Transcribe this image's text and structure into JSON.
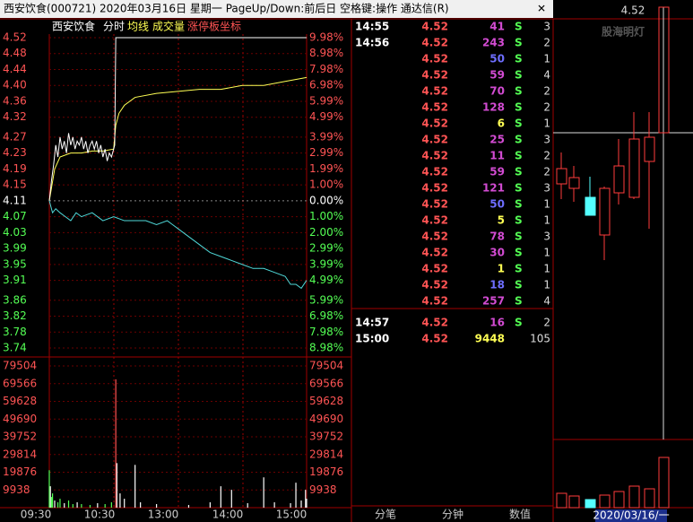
{
  "title_bar": {
    "text": "西安饮食(000721)  2020年03月16日 星期一  PageUp/Down:前后日  空格键:操作  通达信(R)"
  },
  "chart_header": {
    "name": "西安饮食",
    "mode": "分时",
    "avg": "均线",
    "volume": "成交量",
    "limit": "涨停板坐标"
  },
  "intraday": {
    "price_ticks": [
      {
        "value": 4.52,
        "label": "4.52"
      },
      {
        "value": 4.48,
        "label": "4.48"
      },
      {
        "value": 4.44,
        "label": "4.44"
      },
      {
        "value": 4.4,
        "label": "4.40"
      },
      {
        "value": 4.36,
        "label": "4.36"
      },
      {
        "value": 4.32,
        "label": "4.32"
      },
      {
        "value": 4.27,
        "label": "4.27"
      },
      {
        "value": 4.23,
        "label": "4.23"
      },
      {
        "value": 4.19,
        "label": "4.19"
      },
      {
        "value": 4.15,
        "label": "4.15"
      },
      {
        "value": 4.11,
        "label": "4.11"
      },
      {
        "value": 4.07,
        "label": "4.07"
      },
      {
        "value": 4.03,
        "label": "4.03"
      },
      {
        "value": 3.99,
        "label": "3.99"
      },
      {
        "value": 3.95,
        "label": "3.95"
      },
      {
        "value": 3.91,
        "label": "3.91"
      },
      {
        "value": 3.86,
        "label": "3.86"
      },
      {
        "value": 3.82,
        "label": "3.82"
      },
      {
        "value": 3.78,
        "label": "3.78"
      },
      {
        "value": 3.74,
        "label": "3.74"
      }
    ],
    "pct_ticks": [
      {
        "value": 9.98,
        "label": "9.98%"
      },
      {
        "value": 8.98,
        "label": "8.98%"
      },
      {
        "value": 7.98,
        "label": "7.98%"
      },
      {
        "value": 6.98,
        "label": "6.98%"
      },
      {
        "value": 5.99,
        "label": "5.99%"
      },
      {
        "value": 4.99,
        "label": "4.99%"
      },
      {
        "value": 3.99,
        "label": "3.99%"
      },
      {
        "value": 2.99,
        "label": "2.99%"
      },
      {
        "value": 1.99,
        "label": "1.99%"
      },
      {
        "value": 1.0,
        "label": "1.00%"
      },
      {
        "value": 0,
        "label": "0.00%"
      },
      {
        "value": -1.0,
        "label": "1.00%"
      },
      {
        "value": -2.0,
        "label": "2.00%"
      },
      {
        "value": -2.99,
        "label": "2.99%"
      },
      {
        "value": -3.99,
        "label": "3.99%"
      },
      {
        "value": -4.99,
        "label": "4.99%"
      },
      {
        "value": -5.99,
        "label": "5.99%"
      },
      {
        "value": -6.98,
        "label": "6.98%"
      },
      {
        "value": -7.98,
        "label": "7.98%"
      },
      {
        "value": -8.98,
        "label": "8.98%"
      }
    ],
    "volume_ticks": [
      79504,
      69566,
      59628,
      49690,
      39752,
      29814,
      19876,
      9938
    ],
    "time_labels": [
      "09:30",
      "10:30",
      "13:00",
      "14:00",
      "15:00"
    ],
    "price_line": {
      "minutes": [
        0,
        2,
        4,
        6,
        8,
        10,
        12,
        14,
        16,
        18,
        20,
        22,
        24,
        26,
        28,
        30,
        32,
        34,
        36,
        38,
        40,
        42,
        44,
        46,
        48,
        50,
        52,
        54,
        56,
        58,
        60,
        61,
        62,
        240
      ],
      "values": [
        4.11,
        4.16,
        4.2,
        4.25,
        4.22,
        4.27,
        4.24,
        4.26,
        4.23,
        4.28,
        4.25,
        4.27,
        4.24,
        4.26,
        4.25,
        4.27,
        4.24,
        4.26,
        4.23,
        4.25,
        4.26,
        4.24,
        4.26,
        4.23,
        4.25,
        4.22,
        4.24,
        4.21,
        4.23,
        4.22,
        4.24,
        4.25,
        4.52,
        4.52
      ]
    },
    "avg_line": {
      "minutes": [
        0,
        5,
        10,
        20,
        30,
        40,
        50,
        60,
        62,
        65,
        70,
        80,
        100,
        120,
        140,
        160,
        180,
        200,
        220,
        240
      ],
      "values": [
        4.11,
        4.19,
        4.22,
        4.23,
        4.23,
        4.235,
        4.235,
        4.24,
        4.3,
        4.33,
        4.35,
        4.37,
        4.38,
        4.385,
        4.39,
        4.39,
        4.4,
        4.4,
        4.41,
        4.42
      ]
    },
    "index_line": {
      "minutes": [
        0,
        3,
        6,
        10,
        15,
        20,
        25,
        30,
        40,
        50,
        60,
        70,
        80,
        90,
        100,
        110,
        115,
        120,
        130,
        140,
        150,
        160,
        170,
        180,
        190,
        200,
        210,
        220,
        225,
        230,
        235,
        240
      ],
      "values": [
        4.11,
        4.08,
        4.09,
        4.08,
        4.07,
        4.06,
        4.08,
        4.07,
        4.08,
        4.06,
        4.07,
        4.06,
        4.06,
        4.06,
        4.05,
        4.06,
        4.05,
        4.04,
        4.02,
        4.0,
        3.98,
        3.97,
        3.96,
        3.95,
        3.94,
        3.94,
        3.93,
        3.92,
        3.9,
        3.9,
        3.89,
        3.91
      ]
    },
    "volume": {
      "minutes": [
        0,
        1,
        2,
        3,
        5,
        8,
        10,
        14,
        18,
        22,
        26,
        30,
        38,
        45,
        52,
        58,
        62,
        63,
        66,
        70,
        80,
        85,
        100,
        130,
        150,
        160,
        170,
        185,
        200,
        210,
        225,
        230,
        235,
        239,
        240
      ],
      "values": [
        21000,
        12000,
        6000,
        8000,
        4000,
        3000,
        5000,
        2500,
        4000,
        2000,
        3000,
        2000,
        1500,
        2500,
        2000,
        3000,
        72000,
        25000,
        8000,
        5000,
        24000,
        3000,
        2000,
        1500,
        3000,
        12000,
        10000,
        2500,
        17000,
        3000,
        2500,
        14000,
        4000,
        10000,
        5000
      ],
      "colors": [
        "#54ff54",
        "#ffffff",
        "#54ff54",
        "#54ff54",
        "#ffffff",
        "#54ff54",
        "#54ff54",
        "#ffffff",
        "#54ff54",
        "#54ff54",
        "#ffffff",
        "#54ff54",
        "#54ff54",
        "#ffffff",
        "#54ff54",
        "#54ff54",
        "#ff5454",
        "#ffffff",
        "#ffffff",
        "#ffffff",
        "#ffffff",
        "#ffffff",
        "#ffffff",
        "#ffffff",
        "#ffffff",
        "#ffffff",
        "#ffffff",
        "#ffffff",
        "#ffffff",
        "#ffffff",
        "#ffffff",
        "#ffffff",
        "#ffffff",
        "#ffffff",
        "#ffffff"
      ]
    }
  },
  "trades": {
    "rows": [
      {
        "time": "14:55",
        "price": "4.52",
        "volume": 41,
        "side": "S",
        "count": 3,
        "color": "#d24bd2"
      },
      {
        "time": "14:56",
        "price": "4.52",
        "volume": 243,
        "side": "S",
        "count": 2,
        "color": "#d24bd2"
      },
      {
        "price": "4.52",
        "volume": 50,
        "side": "S",
        "count": 1,
        "color": "#6e6eff"
      },
      {
        "price": "4.52",
        "volume": 59,
        "side": "S",
        "count": 4,
        "color": "#d24bd2"
      },
      {
        "price": "4.52",
        "volume": 70,
        "side": "S",
        "count": 2,
        "color": "#d24bd2"
      },
      {
        "price": "4.52",
        "volume": 128,
        "side": "S",
        "count": 2,
        "color": "#d24bd2"
      },
      {
        "price": "4.52",
        "volume": 6,
        "side": "S",
        "count": 1,
        "color": "#ffff54"
      },
      {
        "price": "4.52",
        "volume": 25,
        "side": "S",
        "count": 3,
        "color": "#d24bd2"
      },
      {
        "price": "4.52",
        "volume": 11,
        "side": "S",
        "count": 2,
        "color": "#d24bd2"
      },
      {
        "price": "4.52",
        "volume": 59,
        "side": "S",
        "count": 2,
        "color": "#d24bd2"
      },
      {
        "price": "4.52",
        "volume": 121,
        "side": "S",
        "count": 3,
        "color": "#d24bd2"
      },
      {
        "price": "4.52",
        "volume": 50,
        "side": "S",
        "count": 1,
        "color": "#6e6eff"
      },
      {
        "price": "4.52",
        "volume": 5,
        "side": "S",
        "count": 1,
        "color": "#ffff54"
      },
      {
        "price": "4.52",
        "volume": 78,
        "side": "S",
        "count": 3,
        "color": "#d24bd2"
      },
      {
        "price": "4.52",
        "volume": 30,
        "side": "S",
        "count": 1,
        "color": "#d24bd2"
      },
      {
        "price": "4.52",
        "volume": 1,
        "side": "S",
        "count": 1,
        "color": "#ffff54"
      },
      {
        "price": "4.52",
        "volume": 18,
        "side": "S",
        "count": 1,
        "color": "#6e6eff"
      },
      {
        "price": "4.52",
        "volume": 257,
        "side": "S",
        "count": 4,
        "color": "#d24bd2"
      },
      {
        "time": "14:57",
        "price": "4.52",
        "volume": 16,
        "side": "S",
        "count": 2,
        "color": "#d24bd2"
      },
      {
        "time": "15:00",
        "price": "4.52",
        "volume": 9448,
        "count": 105,
        "color": "#ffff54"
      }
    ]
  },
  "tabs": [
    "分笔",
    "分钟",
    "数值"
  ],
  "candle_panel": {
    "watermark": "股海明灯",
    "price_label": "4.52",
    "date": "2020/03/16/一"
  }
}
